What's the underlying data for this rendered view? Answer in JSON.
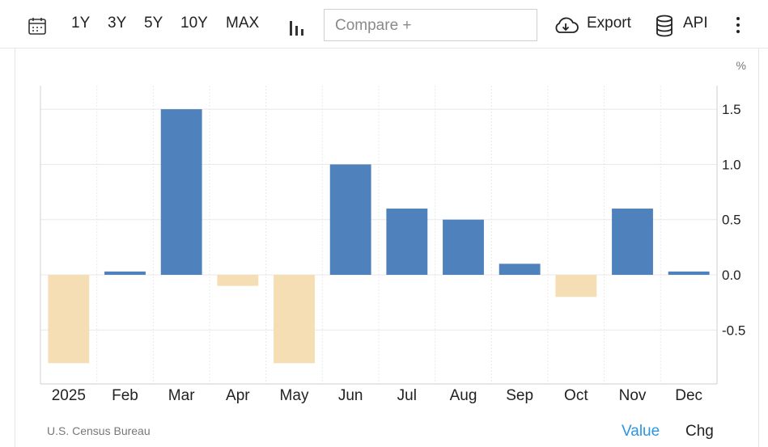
{
  "toolbar": {
    "ranges": [
      "1Y",
      "3Y",
      "5Y",
      "10Y",
      "MAX"
    ],
    "compare_placeholder": "Compare +",
    "export_label": "Export",
    "api_label": "API"
  },
  "footer": {
    "source": "U.S. Census Bureau",
    "value_label": "Value",
    "chg_label": "Chg"
  },
  "colors": {
    "positive": "#4f81bd",
    "negative": "#f5deb3",
    "value_link": "#2b95e3",
    "grid": "#e8e8e8"
  },
  "chart_data": {
    "type": "bar",
    "unit_label": "%",
    "categories": [
      "2025",
      "Feb",
      "Mar",
      "Apr",
      "May",
      "Jun",
      "Jul",
      "Aug",
      "Sep",
      "Oct",
      "Nov",
      "Dec"
    ],
    "values": [
      -0.8,
      0.03,
      1.5,
      -0.1,
      -0.8,
      1.0,
      0.6,
      0.5,
      0.1,
      -0.2,
      0.6,
      0.03
    ],
    "yticks": [
      1.5,
      1.0,
      0.5,
      0.0,
      -0.5
    ],
    "ytick_labels": [
      "1.5",
      "1.0",
      "0.5",
      "0.0",
      "-0.5"
    ],
    "ylim": [
      -1.0,
      1.7
    ],
    "y_axis_position": "right",
    "grid": true,
    "legend": "none"
  }
}
